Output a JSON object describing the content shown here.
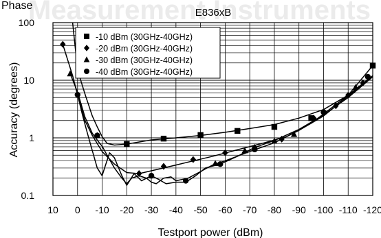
{
  "chart_data": {
    "type": "line",
    "corner_label": "Phase",
    "watermark": "Measurement Instruments",
    "title": "E836xB",
    "xlabel": "Testport power (dBm)",
    "ylabel": "Accuracy (degrees)",
    "x_ticks": [
      10,
      0,
      -10,
      -20,
      -30,
      -40,
      -50,
      -60,
      -70,
      -80,
      -90,
      -100,
      -110,
      -120
    ],
    "x_tick_labels": [
      "10",
      "0",
      "-10",
      "-20",
      "-30",
      "-40",
      "-50",
      "-60",
      "-70",
      "-80",
      "-90",
      "-100",
      "-110",
      "-120"
    ],
    "xlim": [
      10,
      -120
    ],
    "y_scale": "log",
    "ylim": [
      0.1,
      100
    ],
    "y_ticks": [
      0.1,
      1,
      10,
      100
    ],
    "y_tick_labels": [
      "0.1",
      "1",
      "10",
      "100"
    ],
    "grid": true,
    "legend_position": "top-left",
    "series": [
      {
        "name": "-10 dBm (30GHz-40GHz)",
        "marker": "square",
        "x": [
          2,
          0,
          -3,
          -6,
          -8,
          -10,
          -12,
          -15,
          -20,
          -30,
          -40,
          -50,
          -60,
          -70,
          -80,
          -90,
          -100,
          -110,
          -120
        ],
        "y": [
          100,
          15,
          5.8,
          2.4,
          1.55,
          1.05,
          0.8,
          0.75,
          0.78,
          0.92,
          1.0,
          1.1,
          1.25,
          1.45,
          1.7,
          2.2,
          3.1,
          5.5,
          18
        ],
        "marker_x": [
          -20,
          -35,
          -50,
          -65,
          -80,
          -95,
          -120
        ],
        "marker_y": [
          0.78,
          0.97,
          1.12,
          1.32,
          1.55,
          2.2,
          18
        ]
      },
      {
        "name": "-20 dBm (30GHz-40GHz)",
        "marker": "diamond",
        "x": [
          6,
          2,
          0,
          -3,
          -6,
          -10,
          -15,
          -20,
          -25,
          -35,
          -45,
          -55,
          -65,
          -75,
          -85,
          -95,
          -100,
          -110,
          -120
        ],
        "y": [
          42,
          12,
          5.5,
          2.0,
          1.1,
          0.58,
          0.35,
          0.25,
          0.24,
          0.3,
          0.38,
          0.48,
          0.62,
          0.8,
          1.05,
          1.8,
          2.6,
          5.5,
          12
        ],
        "marker_x": [
          6,
          -25,
          -35,
          -47,
          -60,
          -72,
          -83,
          -96,
          -105,
          -110,
          -116
        ],
        "marker_y": [
          42,
          0.24,
          0.32,
          0.42,
          0.55,
          0.68,
          0.95,
          2.2,
          3.6,
          5.5,
          9
        ]
      },
      {
        "name": "-30 dBm (30GHz-40GHz)",
        "marker": "triangle",
        "x": [
          3,
          0,
          -3,
          -6,
          -9,
          -10,
          -12,
          -15,
          -18,
          -20,
          -22,
          -25,
          -28,
          -30,
          -32,
          -35,
          -38,
          -40,
          -45,
          -50,
          -55,
          -60,
          -70,
          -80,
          -90,
          -100,
          -110,
          -120
        ],
        "y": [
          13,
          6.2,
          2.3,
          1.2,
          0.8,
          0.72,
          0.5,
          0.3,
          0.2,
          0.16,
          0.2,
          0.22,
          0.2,
          0.17,
          0.16,
          0.2,
          0.21,
          0.18,
          0.2,
          0.26,
          0.34,
          0.4,
          0.58,
          0.82,
          1.35,
          2.4,
          5.3,
          11.5
        ],
        "marker_x": [
          3,
          -8,
          -56,
          -68,
          -80,
          -88,
          -113
        ],
        "marker_y": [
          13,
          1.1,
          0.36,
          0.6,
          0.88,
          1.15,
          7.5
        ]
      },
      {
        "name": "-40 dBm (30GHz-40GHz)",
        "marker": "circle",
        "x": [
          0,
          -2,
          -4,
          -6,
          -8,
          -10,
          -11,
          -13,
          -15,
          -18,
          -20,
          -23,
          -26,
          -30,
          -33,
          -36,
          -40,
          -44,
          -48,
          -52,
          -58,
          -65,
          -72,
          -80,
          -90,
          -100,
          -110,
          -120
        ],
        "y": [
          5.6,
          2.5,
          1.2,
          0.6,
          0.3,
          0.22,
          0.3,
          0.55,
          0.45,
          0.22,
          0.15,
          0.24,
          0.18,
          0.22,
          0.19,
          0.16,
          0.17,
          0.17,
          0.22,
          0.3,
          0.35,
          0.48,
          0.68,
          0.9,
          1.4,
          2.5,
          5.0,
          11.5
        ],
        "marker_x": [
          0,
          -8,
          -30,
          -44,
          -58,
          -72,
          -100,
          -118
        ],
        "marker_y": [
          5.6,
          1.1,
          0.22,
          0.18,
          0.35,
          0.63,
          2.8,
          11.5
        ]
      }
    ]
  }
}
